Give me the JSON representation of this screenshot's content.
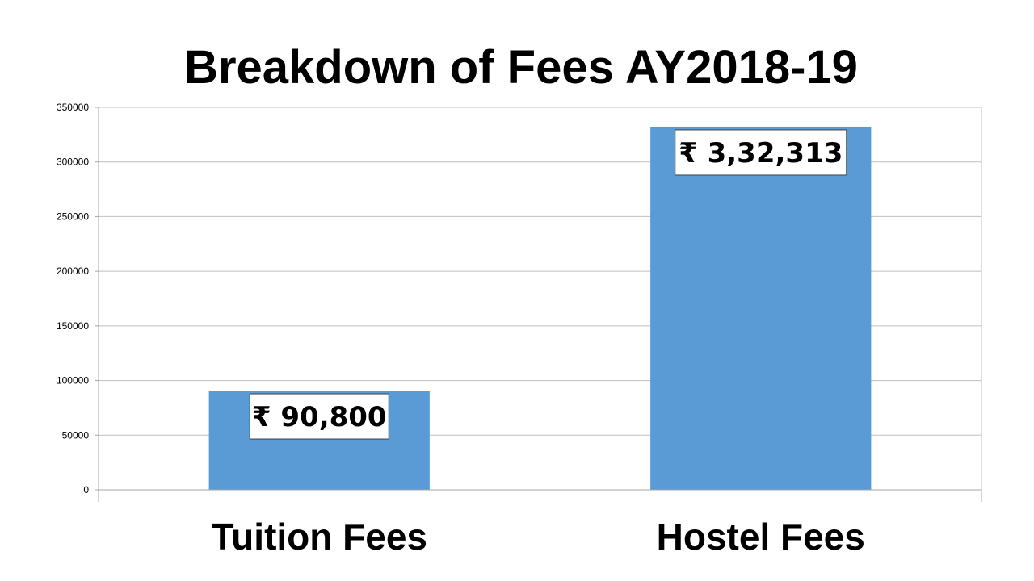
{
  "chart_data": {
    "type": "bar",
    "title": "Breakdown of Fees AY2018-19",
    "categories": [
      "Tuition Fees",
      "Hostel Fees"
    ],
    "values": [
      90800,
      332313
    ],
    "data_labels": [
      "₹ 90,800",
      "₹ 3,32,313"
    ],
    "ylim": [
      0,
      350000
    ],
    "yticks": [
      "0",
      "50000",
      "100000",
      "150000",
      "200000",
      "250000",
      "300000",
      "350000"
    ],
    "grid": true,
    "legend": "none",
    "colors": {
      "bar": "#5B9BD5",
      "grid": "#BFBFBF",
      "axis": "#A6A6A6"
    }
  }
}
